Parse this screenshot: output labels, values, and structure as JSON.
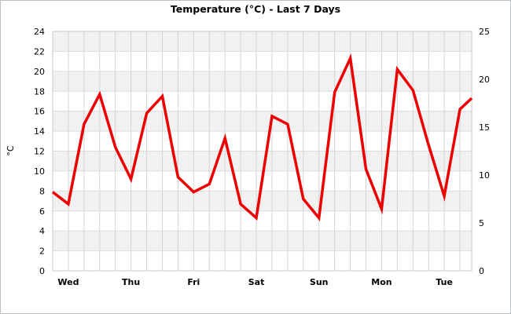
{
  "chart_data": {
    "type": "line",
    "title": "Temperature (°C) - Last 7 Days",
    "ylabel": "°C",
    "ylim": [
      0,
      24
    ],
    "yticks": [
      0,
      2,
      4,
      6,
      8,
      10,
      12,
      14,
      16,
      18,
      20,
      22,
      24
    ],
    "y2lim": [
      0,
      25
    ],
    "y2ticks": [
      0,
      5,
      10,
      15,
      20,
      25
    ],
    "categories": [
      "Wed",
      "Thu",
      "Fri",
      "Sat",
      "Sun",
      "Mon",
      "Tue"
    ],
    "xrange": [
      0,
      26.75
    ],
    "category_positions": [
      1,
      5,
      9,
      13,
      17,
      21,
      25
    ],
    "grid": true,
    "series": [
      {
        "color": "#ee0000",
        "x": [
          0,
          1,
          2,
          3,
          4,
          5,
          6,
          7,
          8,
          9,
          10,
          11,
          12,
          13,
          14,
          15,
          16,
          17,
          18,
          19,
          20,
          21,
          22,
          23,
          24,
          25,
          26,
          26.75
        ],
        "values": [
          7.9,
          6.7,
          14.7,
          17.7,
          12.4,
          9.2,
          15.8,
          17.5,
          9.4,
          7.9,
          8.7,
          13.3,
          6.7,
          5.3,
          15.5,
          14.7,
          7.2,
          5.3,
          17.9,
          21.3,
          10.2,
          6.2,
          20.2,
          18.1,
          12.6,
          7.5,
          16.2,
          17.3
        ]
      }
    ]
  }
}
